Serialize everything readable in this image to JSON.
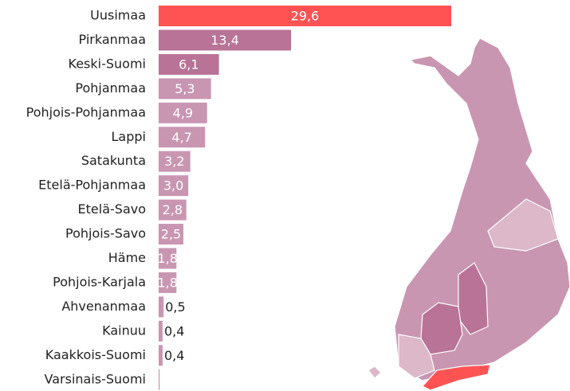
{
  "chart_data": {
    "type": "bar",
    "orientation": "horizontal",
    "categories": [
      "Uusimaa",
      "Pirkanmaa",
      "Keski-Suomi",
      "Pohjanmaa",
      "Pohjois-Pohjanmaa",
      "Lappi",
      "Satakunta",
      "Etelä-Pohjanmaa",
      "Etelä-Savo",
      "Pohjois-Savo",
      "Häme",
      "Pohjois-Karjala",
      "Ahvenanmaa",
      "Kainuu",
      "Kaakkois-Suomi",
      "Varsinais-Suomi"
    ],
    "values": [
      29.6,
      13.4,
      6.1,
      5.3,
      4.9,
      4.7,
      3.2,
      3.0,
      2.8,
      2.5,
      1.8,
      1.8,
      0.5,
      0.4,
      0.4,
      0.1
    ],
    "value_labels": [
      "29,6",
      "13,4",
      "6,1",
      "5,3",
      "4,9",
      "4,7",
      "3,2",
      "3,0",
      "2,8",
      "2,5",
      "1,8",
      "1,8",
      "0,5",
      "0,4",
      "0,4",
      null
    ],
    "colors": [
      "#ff5353",
      "#b87396",
      "#b87396",
      "#c996b1",
      "#c996b1",
      "#c996b1",
      "#c996b1",
      "#c996b1",
      "#c996b1",
      "#c996b1",
      "#c996b1",
      "#c996b1",
      "#c996b1",
      "#c996b1",
      "#c996b1",
      "#c996b1"
    ],
    "xlim": [
      0,
      29.6
    ]
  }
}
